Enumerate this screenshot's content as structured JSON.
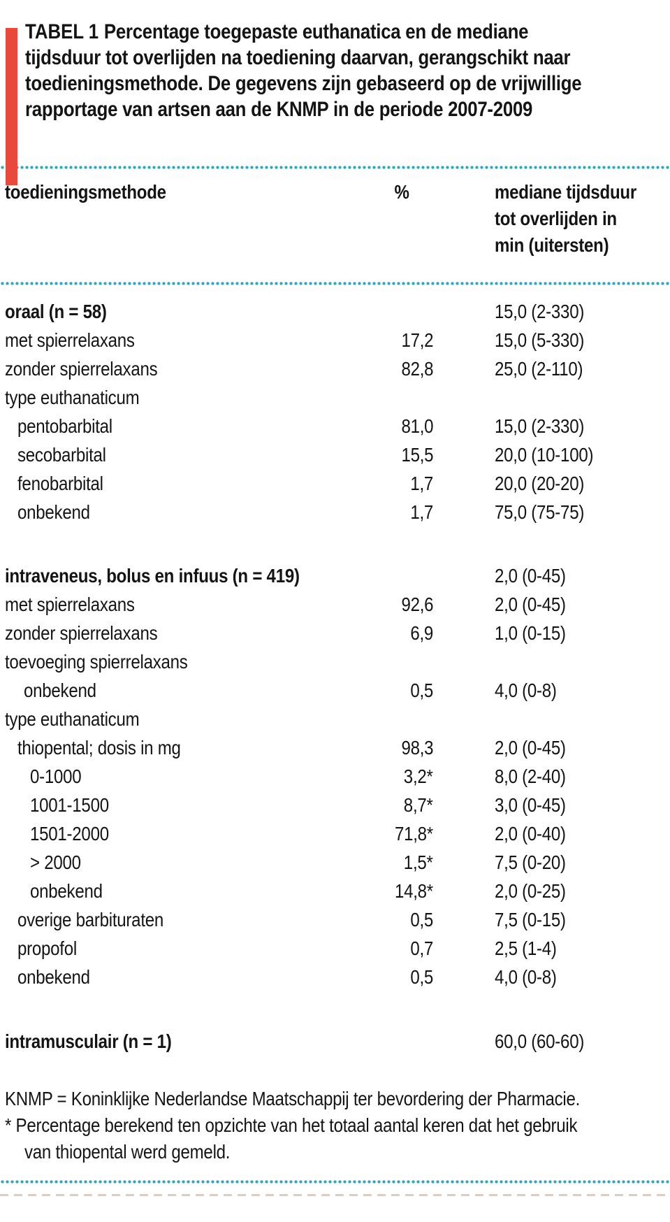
{
  "colors": {
    "accent_red": "#e9493a",
    "dot_teal": "#2ba4c6",
    "text_ink": "#141414",
    "ghost_line": "#d9cfc8"
  },
  "title": {
    "label": "TABEL 1",
    "lines": [
      "Percentage toegepaste euthanatica en de mediane",
      "tijdsduur tot overlijden na toediening daarvan, gerangschikt naar",
      "toedieningsmethode. De gegevens zijn gebaseerd op de vrijwillige",
      "rapportage van artsen aan de KNMP in de periode 2007-2009"
    ]
  },
  "columns": {
    "method": "toedieningsmethode",
    "percent": "%",
    "median_lines": [
      "mediane tijdsduur",
      "tot overlijden in",
      "min (uitersten)"
    ]
  },
  "sections": [
    {
      "rows": [
        {
          "label": "oraal (n = 58)",
          "indent": 0,
          "bold": true,
          "percent": "",
          "median": "15,0 (2-330)"
        },
        {
          "label": "met spierrelaxans",
          "indent": 0,
          "bold": false,
          "percent": "17,2",
          "median": "15,0 (5-330)"
        },
        {
          "label": "zonder spierrelaxans",
          "indent": 0,
          "bold": false,
          "percent": "82,8",
          "median": "25,0 (2-110)"
        },
        {
          "label": "type euthanaticum",
          "indent": 0,
          "bold": false,
          "percent": "",
          "median": ""
        },
        {
          "label": "pentobarbital",
          "indent": 1,
          "bold": false,
          "percent": "81,0",
          "median": "15,0 (2-330)"
        },
        {
          "label": "secobarbital",
          "indent": 1,
          "bold": false,
          "percent": "15,5",
          "median": "20,0 (10-100)"
        },
        {
          "label": "fenobarbital",
          "indent": 1,
          "bold": false,
          "percent": "1,7",
          "median": "20,0 (20-20)"
        },
        {
          "label": "onbekend",
          "indent": 1,
          "bold": false,
          "percent": "1,7",
          "median": "75,0 (75-75)"
        }
      ]
    },
    {
      "rows": [
        {
          "label": "intraveneus, bolus en infuus (n = 419)",
          "indent": 0,
          "bold": true,
          "percent": "",
          "median": "2,0 (0-45)"
        },
        {
          "label": "met spierrelaxans",
          "indent": 0,
          "bold": false,
          "percent": "92,6",
          "median": "2,0 (0-45)"
        },
        {
          "label": "zonder spierrelaxans",
          "indent": 0,
          "bold": false,
          "percent": "6,9",
          "median": "1,0 (0-15)"
        },
        {
          "label": "toevoeging spierrelaxans",
          "indent": 0,
          "bold": false,
          "percent": "",
          "median": ""
        },
        {
          "label": "onbekend",
          "indent": 1.5,
          "bold": false,
          "percent": "0,5",
          "median": "4,0 (0-8)"
        },
        {
          "label": "type euthanaticum",
          "indent": 0,
          "bold": false,
          "percent": "",
          "median": ""
        },
        {
          "label": "thiopental; dosis in mg",
          "indent": 1,
          "bold": false,
          "percent": "98,3",
          "median": "2,0 (0-45)"
        },
        {
          "label": "0-1000",
          "indent": 2,
          "bold": false,
          "percent": "3,2*",
          "median": "8,0 (2-40)"
        },
        {
          "label": "1001-1500",
          "indent": 2,
          "bold": false,
          "percent": "8,7*",
          "median": "3,0 (0-45)"
        },
        {
          "label": "1501-2000",
          "indent": 2,
          "bold": false,
          "percent": "71,8*",
          "median": "2,0 (0-40)"
        },
        {
          "label": "> 2000",
          "indent": 2,
          "bold": false,
          "percent": "1,5*",
          "median": "7,5 (0-20)"
        },
        {
          "label": "onbekend",
          "indent": 2,
          "bold": false,
          "percent": "14,8*",
          "median": "2,0 (0-25)"
        },
        {
          "label": "overige barbituraten",
          "indent": 1,
          "bold": false,
          "percent": "0,5",
          "median": "7,5 (0-15)"
        },
        {
          "label": "propofol",
          "indent": 1,
          "bold": false,
          "percent": "0,7",
          "median": "2,5 (1-4)"
        },
        {
          "label": "onbekend",
          "indent": 1,
          "bold": false,
          "percent": "0,5",
          "median": "4,0 (0-8)"
        }
      ]
    },
    {
      "rows": [
        {
          "label": "intramusculair (n = 1)",
          "indent": 0,
          "bold": true,
          "percent": "",
          "median": "60,0 (60-60)"
        }
      ]
    }
  ],
  "footnotes": {
    "lines": [
      {
        "text": "KNMP = Koninklijke Nederlandse Maatschappij ter bevordering der Pharmacie.",
        "indent": 0
      },
      {
        "text": "* Percentage berekend ten opzichte van het totaal aantal keren dat het gebruik",
        "indent": 0
      },
      {
        "text": "van thiopental werd gemeld.",
        "indent": 1
      }
    ]
  }
}
